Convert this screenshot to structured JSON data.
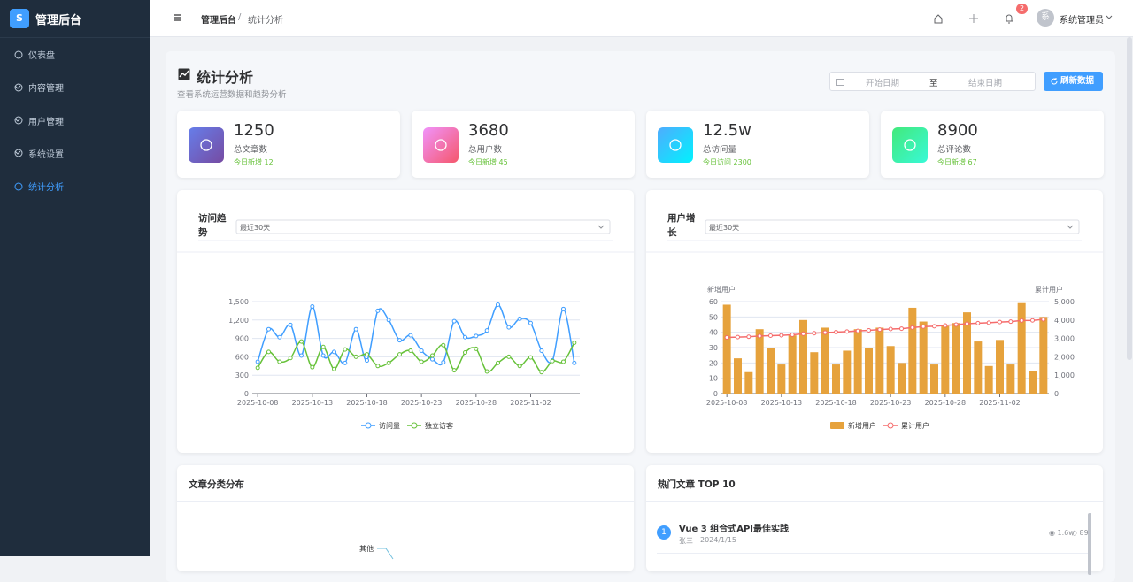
{
  "sidebar": {
    "logo": "S",
    "brand": "管理后台",
    "menu": [
      "仪表盘",
      "内容管理",
      "用户管理",
      "系统设置",
      "统计分析"
    ],
    "active": 4
  },
  "header": {
    "breadcrumb": [
      "管理后台",
      "统计分析"
    ],
    "badge": "2",
    "avatar": "系",
    "user": "系统管理员"
  },
  "page": {
    "title": "统计分析",
    "subtitle": "查看系统运营数据和趋势分析",
    "date_start": "开始日期",
    "date_sep": "至",
    "date_end": "结束日期",
    "refresh": "刷新数据"
  },
  "stats": [
    {
      "value": "1250",
      "label": "总文章数",
      "sub": "今日新增 12"
    },
    {
      "value": "3680",
      "label": "总用户数",
      "sub": "今日新增 45"
    },
    {
      "value": "12.5w",
      "label": "总访问量",
      "sub": "今日访问 2300"
    },
    {
      "value": "8900",
      "label": "总评论数",
      "sub": "今日新增 67"
    }
  ],
  "chart_data": [
    {
      "type": "line",
      "title": "访问趋势",
      "range": "最近30天",
      "categories": [
        "2025-10-08",
        null,
        null,
        null,
        null,
        "2025-10-13",
        null,
        null,
        null,
        null,
        "2025-10-18",
        null,
        null,
        null,
        null,
        "2025-10-23",
        null,
        null,
        null,
        null,
        "2025-10-28",
        null,
        null,
        null,
        null,
        "2025-11-02",
        null,
        null,
        null,
        null
      ],
      "series": [
        {
          "name": "访问量",
          "color": "#409eff",
          "values": [
            520,
            1050,
            920,
            1120,
            620,
            1420,
            620,
            680,
            500,
            1050,
            540,
            1350,
            1200,
            870,
            950,
            700,
            560,
            510,
            1180,
            920,
            940,
            1030,
            1450,
            1080,
            1220,
            1150,
            700,
            540,
            1380,
            500
          ]
        },
        {
          "name": "独立访客",
          "color": "#67c23a",
          "values": [
            420,
            680,
            520,
            580,
            850,
            430,
            760,
            400,
            720,
            600,
            640,
            450,
            500,
            640,
            700,
            520,
            620,
            790,
            380,
            670,
            730,
            360,
            500,
            600,
            450,
            590,
            350,
            530,
            520,
            830
          ]
        }
      ],
      "ylim": [
        0,
        1500
      ],
      "yticks": [
        0,
        300,
        600,
        900,
        {
          "value": 1200,
          "label": "1,200"
        },
        {
          "value": 1500,
          "label": "1,500"
        }
      ],
      "grid": true
    },
    {
      "type": "bar",
      "title": "用户增长",
      "range": "最近30天",
      "y_axis_label": "新增用户",
      "y2_axis_label": "累计用户",
      "categories": [
        "2025-10-08",
        null,
        null,
        null,
        null,
        "2025-10-13",
        null,
        null,
        null,
        null,
        "2025-10-18",
        null,
        null,
        null,
        null,
        "2025-10-23",
        null,
        null,
        null,
        null,
        "2025-10-28",
        null,
        null,
        null,
        null,
        "2025-11-02",
        null,
        null,
        null,
        null
      ],
      "series": [
        {
          "name": "新增用户",
          "color": "#e6a23c",
          "values": [
            58,
            23,
            14,
            42,
            30,
            19,
            38,
            48,
            27,
            43,
            19,
            28,
            42,
            30,
            43,
            31,
            20,
            56,
            47,
            19,
            44,
            46,
            53,
            34,
            18,
            35,
            19,
            59,
            15,
            50
          ]
        },
        {
          "name": "累计用户",
          "color": "#f56c6c",
          "kind": "line",
          "axis": "y2",
          "values": [
            3050,
            3070,
            3090,
            3130,
            3150,
            3170,
            3200,
            3250,
            3280,
            3320,
            3340,
            3370,
            3410,
            3440,
            3480,
            3510,
            3530,
            3590,
            3640,
            3660,
            3700,
            3750,
            3800,
            3830,
            3850,
            3890,
            3910,
            3970,
            3980,
            4030
          ]
        }
      ],
      "ylim": [
        0,
        60
      ],
      "yticks": [
        0,
        10,
        20,
        30,
        40,
        50,
        60
      ],
      "y2lim": [
        0,
        5000
      ],
      "y2ticks": [
        0,
        {
          "value": 1000,
          "label": "1,000"
        },
        {
          "value": 2000,
          "label": "2,000"
        },
        {
          "value": 3000,
          "label": "3,000"
        },
        {
          "value": 4000,
          "label": "4,000"
        },
        {
          "value": 5000,
          "label": "5,000"
        }
      ],
      "grid": true
    }
  ],
  "category_card": {
    "title": "文章分类分布",
    "labels": [
      "其他"
    ]
  },
  "hot_card": {
    "title": "热门文章 TOP 10",
    "items": [
      {
        "rank": "1",
        "title": "Vue 3 组合式API最佳实践",
        "author": "张三",
        "date": "2024/1/15",
        "views": "1.6w",
        "comments": "89"
      }
    ]
  }
}
